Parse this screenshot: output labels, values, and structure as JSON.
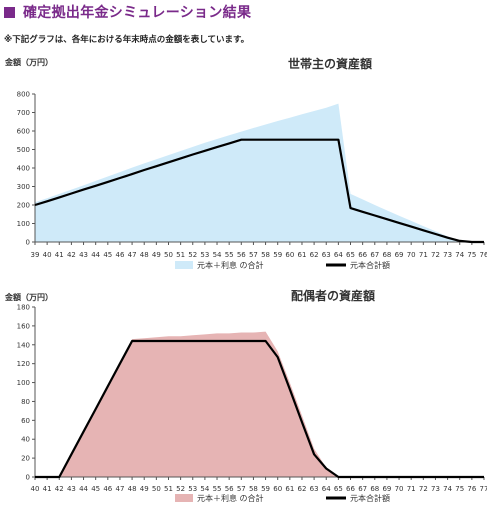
{
  "header": {
    "title": "確定拠出年金シミュレーション結果"
  },
  "note": "※下記グラフは、各年における年末時点の金額を表しています。",
  "chart_data": [
    {
      "type": "area",
      "title": "世帯主の資産額",
      "ylabel": "金額（万円）",
      "ylim": [
        0,
        800
      ],
      "yticks": [
        0,
        100,
        200,
        300,
        400,
        500,
        600,
        700,
        800
      ],
      "x": [
        39,
        40,
        41,
        42,
        43,
        44,
        45,
        46,
        47,
        48,
        49,
        50,
        51,
        52,
        53,
        54,
        55,
        56,
        57,
        58,
        59,
        60,
        61,
        62,
        63,
        64,
        65,
        66,
        67,
        68,
        69,
        70,
        71,
        72,
        73,
        74,
        75,
        76
      ],
      "series": [
        {
          "name": "元本＋利息 の合計",
          "type": "area",
          "color": "#cfeaf9",
          "values": [
            215,
            237,
            260,
            283,
            306,
            330,
            354,
            378,
            402,
            425,
            447,
            470,
            492,
            514,
            536,
            557,
            577,
            597,
            616,
            635,
            654,
            672,
            690,
            708,
            726,
            748,
            260,
            230,
            200,
            171,
            142,
            114,
            86,
            58,
            30,
            10,
            0,
            0
          ]
        },
        {
          "name": "元本合計額",
          "type": "line",
          "color": "#000000",
          "values": [
            200,
            220,
            241,
            262,
            283,
            304,
            325,
            346,
            367,
            389,
            410,
            431,
            452,
            473,
            493,
            513,
            533,
            553,
            553,
            553,
            553,
            553,
            553,
            553,
            553,
            553,
            183,
            163,
            143,
            123,
            103,
            83,
            63,
            43,
            23,
            6,
            0,
            0
          ]
        }
      ],
      "legend": "bottom"
    },
    {
      "type": "area",
      "title": "配偶者の資産額",
      "ylabel": "金額（万円）",
      "ylim": [
        0,
        180
      ],
      "yticks": [
        0,
        20,
        40,
        60,
        80,
        100,
        120,
        140,
        160,
        180
      ],
      "x": [
        40,
        41,
        42,
        43,
        44,
        45,
        46,
        47,
        48,
        49,
        50,
        51,
        52,
        53,
        54,
        55,
        56,
        57,
        58,
        59,
        60,
        61,
        62,
        63,
        64,
        65,
        66,
        67,
        68,
        69,
        70,
        71,
        72,
        73,
        74,
        75,
        76,
        77
      ],
      "series": [
        {
          "name": "元本＋利息 の合計",
          "type": "area",
          "color": "#e6b4b4",
          "values": [
            0,
            0,
            0,
            24,
            48,
            72,
            96,
            120,
            146,
            147,
            148,
            149,
            149,
            150,
            151,
            152,
            152,
            153,
            153,
            154,
            133,
            100,
            65,
            30,
            10,
            0,
            0,
            0,
            0,
            0,
            0,
            0,
            0,
            0,
            0,
            0,
            0,
            0
          ]
        },
        {
          "name": "元本合計額",
          "type": "line",
          "color": "#000000",
          "values": [
            0,
            0,
            0,
            24,
            48,
            72,
            96,
            120,
            144,
            144,
            144,
            144,
            144,
            144,
            144,
            144,
            144,
            144,
            144,
            144,
            127,
            93,
            58,
            24,
            9,
            0,
            0,
            0,
            0,
            0,
            0,
            0,
            0,
            0,
            0,
            0,
            0,
            0
          ]
        }
      ],
      "legend": "bottom"
    }
  ]
}
